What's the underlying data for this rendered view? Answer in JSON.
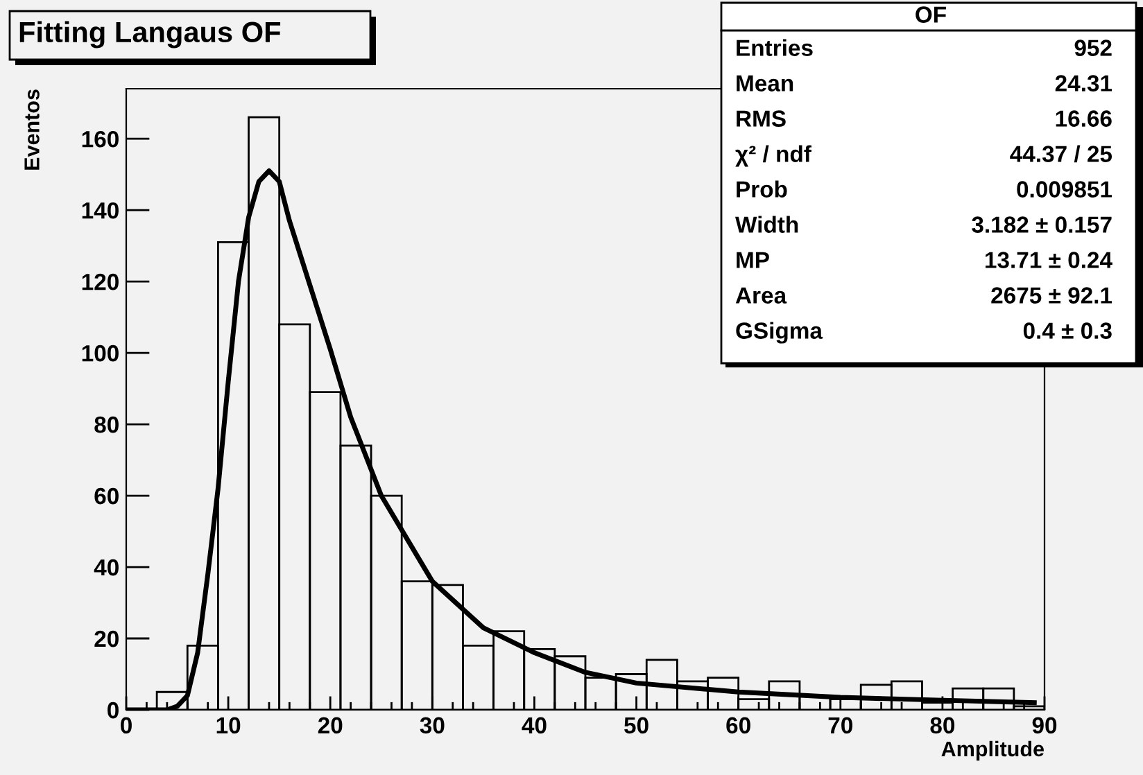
{
  "chart_data": {
    "type": "histogram",
    "title": "Fitting Langaus OF",
    "xlabel": "Amplitude",
    "ylabel": "Eventos",
    "xlim": [
      0,
      90
    ],
    "xticks": [
      0,
      {
        "value": 2,
        "label": null
      },
      {
        "value": 4,
        "label": null
      },
      {
        "value": 6,
        "label": null
      },
      {
        "value": 8,
        "label": null
      },
      10,
      {
        "value": 12,
        "label": null
      },
      {
        "value": 14,
        "label": null
      },
      {
        "value": 16,
        "label": null
      },
      {
        "value": 18,
        "label": null
      },
      20,
      {
        "value": 22,
        "label": null
      },
      {
        "value": 24,
        "label": null
      },
      {
        "value": 26,
        "label": null
      },
      {
        "value": 28,
        "label": null
      },
      30,
      {
        "value": 32,
        "label": null
      },
      {
        "value": 34,
        "label": null
      },
      {
        "value": 36,
        "label": null
      },
      {
        "value": 38,
        "label": null
      },
      40,
      {
        "value": 42,
        "label": null
      },
      {
        "value": 44,
        "label": null
      },
      {
        "value": 46,
        "label": null
      },
      {
        "value": 48,
        "label": null
      },
      50,
      {
        "value": 52,
        "label": null
      },
      {
        "value": 54,
        "label": null
      },
      {
        "value": 56,
        "label": null
      },
      {
        "value": 58,
        "label": null
      },
      60,
      {
        "value": 62,
        "label": null
      },
      {
        "value": 64,
        "label": null
      },
      {
        "value": 66,
        "label": null
      },
      {
        "value": 68,
        "label": null
      },
      70,
      {
        "value": 72,
        "label": null
      },
      {
        "value": 74,
        "label": null
      },
      {
        "value": 76,
        "label": null
      },
      {
        "value": 78,
        "label": null
      },
      80,
      {
        "value": 82,
        "label": null
      },
      {
        "value": 84,
        "label": null
      },
      {
        "value": 86,
        "label": null
      },
      {
        "value": 88,
        "label": null
      },
      90
    ],
    "ylim": [
      0,
      174
    ],
    "yticks": [
      0,
      20,
      40,
      60,
      80,
      100,
      120,
      140,
      160
    ],
    "grid": false,
    "legend": false,
    "series": [
      {
        "type": "histogram",
        "color": "#000000",
        "bins": [
          0,
          3,
          6,
          9,
          12,
          15,
          18,
          21,
          24,
          27,
          30,
          33,
          36,
          39,
          42,
          45,
          48,
          51,
          54,
          57,
          60,
          63,
          66,
          69,
          72,
          75,
          78,
          81,
          84,
          87,
          90
        ],
        "values": [
          0,
          5,
          18,
          131,
          166,
          108,
          89,
          74,
          60,
          36,
          35,
          18,
          22,
          17,
          15,
          9,
          10,
          14,
          8,
          9,
          3,
          8,
          4,
          3,
          7,
          8,
          2,
          6,
          6,
          1
        ]
      },
      {
        "type": "line",
        "color": "#000000",
        "x": [
          0,
          4,
          5,
          6,
          7,
          8,
          9,
          10,
          11,
          12,
          13,
          14,
          15,
          16,
          17,
          18,
          19,
          20,
          22,
          25,
          30,
          35,
          40,
          45,
          50,
          60,
          70,
          80,
          89
        ],
        "values": [
          0,
          0,
          1,
          4,
          16,
          38,
          62,
          92,
          120,
          138,
          148,
          151,
          148,
          137,
          128,
          119,
          110,
          101,
          82,
          60,
          36,
          23,
          16,
          10.5,
          7.5,
          5,
          3.5,
          2.7,
          2
        ]
      }
    ],
    "annotations": [
      "OF",
      "Entries",
      "952",
      "Mean",
      "24.31",
      "RMS",
      "16.66",
      "χ² / ndf",
      "44.37 / 25",
      "Prob",
      "0.009851",
      "Width",
      "3.182 ± 0.157",
      "MP",
      "13.71 ± 0.24",
      "Area",
      "2675 ± 92.1",
      "GSigma",
      "0.4 ± 0.3"
    ]
  }
}
